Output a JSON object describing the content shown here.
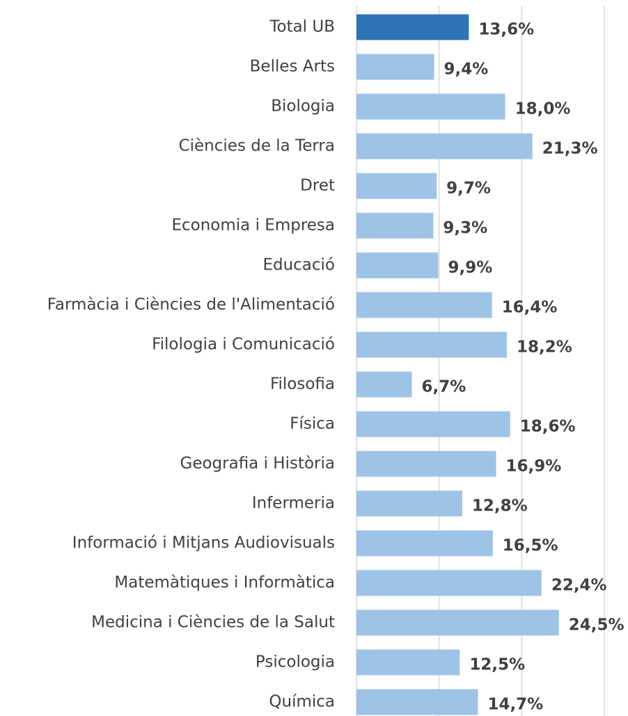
{
  "chart_data": {
    "type": "barh",
    "categories": [
      "Total UB",
      "Belles Arts",
      "Biologia",
      "Ciències de la Terra",
      "Dret",
      "Economia i Empresa",
      "Educació",
      "Farmàcia i Ciències de l'Alimentació",
      "Filologia i Comunicació",
      "Filosofia",
      "Física",
      "Geografia i Història",
      "Infermeria",
      "Informació i Mitjans Audiovisuals",
      "Matemàtiques i Informàtica",
      "Medicina i Ciències de la Salut",
      "Psicologia",
      "Química"
    ],
    "values": [
      13.6,
      9.4,
      18.0,
      21.3,
      9.7,
      9.3,
      9.9,
      16.4,
      18.2,
      6.7,
      18.6,
      16.9,
      12.8,
      16.5,
      22.4,
      24.5,
      12.5,
      14.7
    ],
    "value_labels": [
      "13,6%",
      "9,4%",
      "18,0%",
      "21,3%",
      "9,7%",
      "9,3%",
      "9,9%",
      "16,4%",
      "18,2%",
      "6,7%",
      "18,6%",
      "16,9%",
      "12,8%",
      "16,5%",
      "22,4%",
      "24,5%",
      "12,5%",
      "14,7%"
    ],
    "colors": [
      "#2e75b6",
      "#9dc3e6",
      "#9dc3e6",
      "#9dc3e6",
      "#9dc3e6",
      "#9dc3e6",
      "#9dc3e6",
      "#9dc3e6",
      "#9dc3e6",
      "#9dc3e6",
      "#9dc3e6",
      "#9dc3e6",
      "#9dc3e6",
      "#9dc3e6",
      "#9dc3e6",
      "#9dc3e6",
      "#9dc3e6",
      "#9dc3e6"
    ],
    "xlim": [
      0,
      30
    ],
    "xticks": [
      0,
      10,
      20,
      30
    ],
    "grid": true
  }
}
